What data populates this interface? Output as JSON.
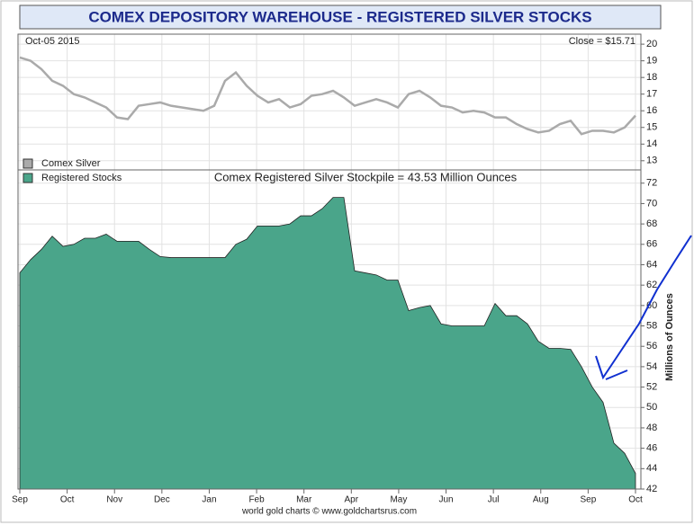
{
  "chart_data": [
    {
      "type": "line",
      "annotation_left": "Oct-05  2015",
      "annotation_right": "Close = $15.71",
      "series": [
        {
          "name": "Comex Silver",
          "color": "#aaaaaa",
          "values": [
            19.2,
            19.0,
            18.5,
            17.8,
            17.5,
            17.0,
            16.8,
            16.5,
            16.2,
            15.6,
            15.5,
            16.3,
            16.4,
            16.5,
            16.3,
            16.2,
            16.1,
            16.0,
            16.3,
            17.8,
            18.3,
            17.5,
            16.9,
            16.5,
            16.7,
            16.2,
            16.4,
            16.9,
            17.0,
            17.2,
            16.8,
            16.3,
            16.5,
            16.7,
            16.5,
            16.2,
            17.0,
            17.2,
            16.8,
            16.3,
            16.2,
            15.9,
            16.0,
            15.9,
            15.6,
            15.6,
            15.2,
            14.9,
            14.7,
            14.8,
            15.2,
            15.4,
            14.6,
            14.8,
            14.8,
            14.7,
            15.0,
            15.71
          ]
        }
      ],
      "ylim": [
        12.45,
        20.6
      ],
      "yticks": [
        13,
        14,
        15,
        16,
        17,
        18,
        19,
        20
      ],
      "grid": true
    },
    {
      "type": "area",
      "title": "COMEX DEPOSITORY WAREHOUSE - REGISTERED SILVER STOCKS",
      "subtitle": "Comex Registered Silver Stockpile = 43.53 Million Ounces",
      "y_label": "Millions of Ounces",
      "footer": "world gold charts © www.goldchartsrus.com",
      "x_labels": [
        "Sep",
        "Oct",
        "Nov",
        "Dec",
        "Jan",
        "Feb",
        "Mar",
        "Apr",
        "May",
        "Jun",
        "Jul",
        "Aug",
        "Sep",
        "Oct"
      ],
      "series": [
        {
          "name": "Registered Stocks",
          "color": "#4aa58a",
          "values": [
            63.2,
            64.5,
            65.5,
            66.8,
            65.8,
            66.0,
            66.6,
            66.6,
            67.0,
            66.3,
            66.3,
            66.3,
            65.5,
            64.8,
            64.7,
            64.7,
            64.7,
            64.7,
            64.7,
            64.7,
            66.0,
            66.5,
            67.8,
            67.8,
            67.8,
            68.0,
            68.8,
            68.8,
            69.5,
            70.6,
            70.6,
            63.4,
            63.2,
            63.0,
            62.5,
            62.5,
            59.5,
            59.8,
            60.0,
            58.2,
            58.0,
            58.0,
            58.0,
            58.0,
            60.2,
            59.0,
            59.0,
            58.2,
            56.5,
            55.8,
            55.8,
            55.7,
            54.0,
            52.0,
            50.5,
            46.5,
            45.5,
            43.53
          ]
        }
      ],
      "ylim": [
        42,
        73.3
      ],
      "yticks": [
        42,
        44,
        46,
        48,
        50,
        52,
        54,
        56,
        58,
        60,
        62,
        64,
        66,
        68,
        70,
        72
      ],
      "grid": true
    }
  ]
}
